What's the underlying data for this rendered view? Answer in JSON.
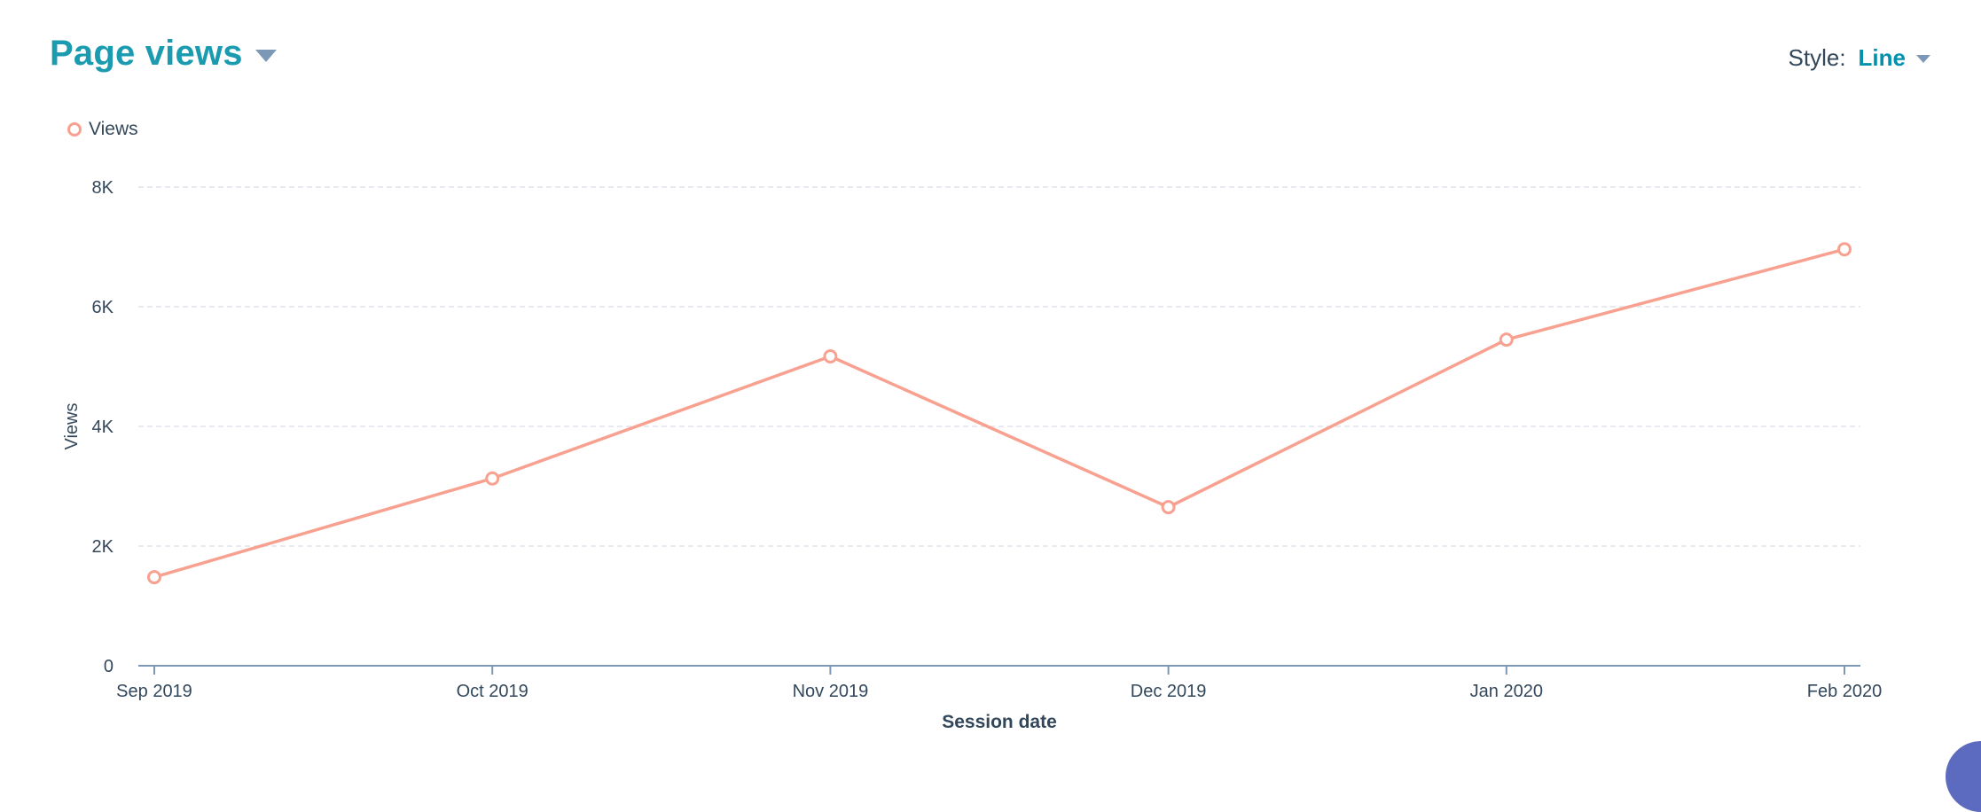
{
  "header": {
    "title": "Page views",
    "style_label": "Style:",
    "style_value": "Line"
  },
  "colors": {
    "title": "#1a9bb0",
    "accent": "#0091ae",
    "series": "#f8a190",
    "grid": "#dfe3eb",
    "axis": "#7c98b6",
    "text": "#33475b"
  },
  "chart_data": {
    "type": "line",
    "x": [
      "Sep 2019",
      "Oct 2019",
      "Nov 2019",
      "Dec 2019",
      "Jan 2020",
      "Feb 2020"
    ],
    "series": [
      {
        "name": "Views",
        "values": [
          1480,
          3130,
          5170,
          2650,
          5450,
          6960
        ]
      }
    ],
    "xlabel": "Session date",
    "ylabel": "Views",
    "ylim": [
      0,
      8000
    ],
    "yticks": [
      {
        "value": 0,
        "label": "0"
      },
      {
        "value": 2000,
        "label": "2K"
      },
      {
        "value": 4000,
        "label": "4K"
      },
      {
        "value": 6000,
        "label": "6K"
      },
      {
        "value": 8000,
        "label": "8K"
      }
    ],
    "grid": true,
    "legend_position": "top-left"
  }
}
